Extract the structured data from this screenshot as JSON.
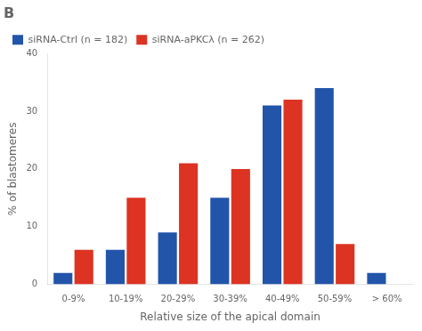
{
  "chart_data": {
    "type": "bar",
    "title": "B",
    "categories": [
      "0-9%",
      "10-19%",
      "20-29%",
      "30-39%",
      "40-49%",
      "50-59%",
      "> 60%"
    ],
    "series": [
      {
        "name": "siRNA-Ctrl (n = 182)",
        "color": "#2255aa",
        "values": [
          2,
          6,
          9,
          15,
          31,
          34,
          2
        ]
      },
      {
        "name": "siRNA-aPKCλ (n = 262)",
        "color": "#dd3322",
        "values": [
          6,
          15,
          21,
          20,
          32,
          7,
          0
        ]
      }
    ],
    "xlabel": "Relative size of the apical domain",
    "ylabel": "% of blastomeres",
    "ylim": [
      0,
      40
    ],
    "yticks": [
      0,
      10,
      20,
      30,
      40
    ],
    "grid": false,
    "legend": "upper left"
  }
}
